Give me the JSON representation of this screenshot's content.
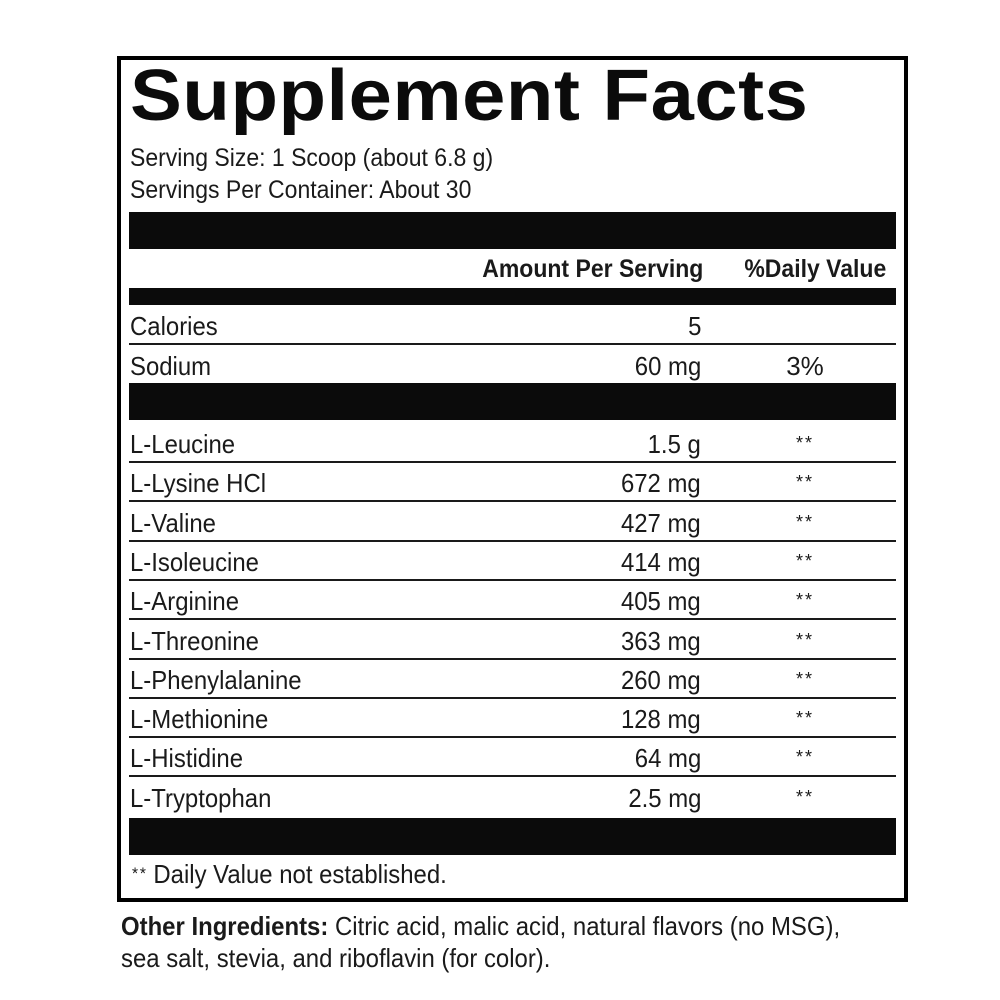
{
  "title": "Supplement Facts",
  "serving_size": "Serving Size: 1 Scoop (about 6.8 g)",
  "servings_per_container": "Servings Per Container: About 30",
  "headers": {
    "amount": "Amount Per Serving",
    "daily_value": "%Daily Value"
  },
  "nutrients": [
    {
      "name": "Calories",
      "amount": "5",
      "dv": ""
    },
    {
      "name": "Sodium",
      "amount": "60 mg",
      "dv": "3%"
    }
  ],
  "amino_acids": [
    {
      "name": "L-Leucine",
      "amount": "1.5 g",
      "dv": "**"
    },
    {
      "name": "L-Lysine HCl",
      "amount": "672 mg",
      "dv": "**"
    },
    {
      "name": "L-Valine",
      "amount": "427 mg",
      "dv": "**"
    },
    {
      "name": "L-Isoleucine",
      "amount": "414 mg",
      "dv": "**"
    },
    {
      "name": "L-Arginine",
      "amount": "405 mg",
      "dv": "**"
    },
    {
      "name": "L-Threonine",
      "amount": "363 mg",
      "dv": "**"
    },
    {
      "name": "L-Phenylalanine",
      "amount": "260 mg",
      "dv": "**"
    },
    {
      "name": "L-Methionine",
      "amount": "128 mg",
      "dv": "**"
    },
    {
      "name": "L-Histidine",
      "amount": "64 mg",
      "dv": "**"
    },
    {
      "name": "L-Tryptophan",
      "amount": "2.5 mg",
      "dv": "**"
    }
  ],
  "footnote": {
    "marker": "**",
    "text": "Daily Value not established."
  },
  "other_ingredients": {
    "label": "Other Ingredients:",
    "text": " Citric acid, malic acid, natural flavors (no MSG), sea salt, stevia, and riboflavin (for color)."
  }
}
